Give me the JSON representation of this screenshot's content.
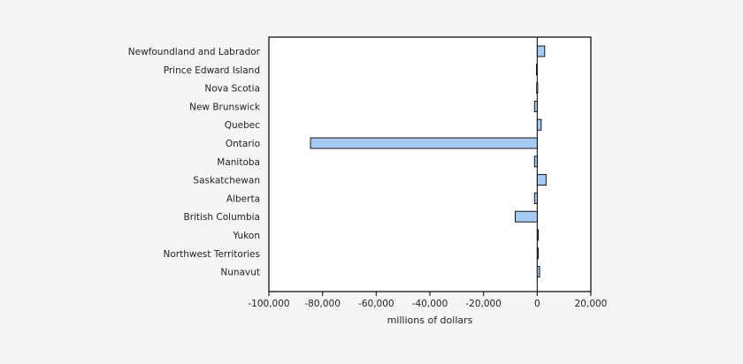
{
  "chart_data": {
    "type": "bar",
    "orientation": "horizontal",
    "categories": [
      "Newfoundland and Labrador",
      "Prince Edward Island",
      "Nova Scotia",
      "New Brunswick",
      "Quebec",
      "Ontario",
      "Manitoba",
      "Saskatchewan",
      "Alberta",
      "British Columbia",
      "Yukon",
      "Northwest Territories",
      "Nunavut"
    ],
    "values": [
      2800,
      -300,
      -200,
      -1000,
      1500,
      -84500,
      -1000,
      3300,
      -1000,
      -8200,
      200,
      300,
      900
    ],
    "xlabel": "millions of dollars",
    "xlim": [
      -100000,
      20000
    ],
    "xticks": [
      -100000,
      -80000,
      -60000,
      -40000,
      -20000,
      0,
      20000
    ],
    "xtick_labels": [
      "-100,000",
      "-80,000",
      "-60,000",
      "-40,000",
      "-20,000",
      "0",
      "20,000"
    ],
    "grid": false,
    "legend": "none",
    "colors": {
      "bar_fill": "#a6cbf2",
      "bar_stroke": "#000000",
      "plot_bg": "#ffffff",
      "page_bg": "#f5f5f5"
    }
  }
}
